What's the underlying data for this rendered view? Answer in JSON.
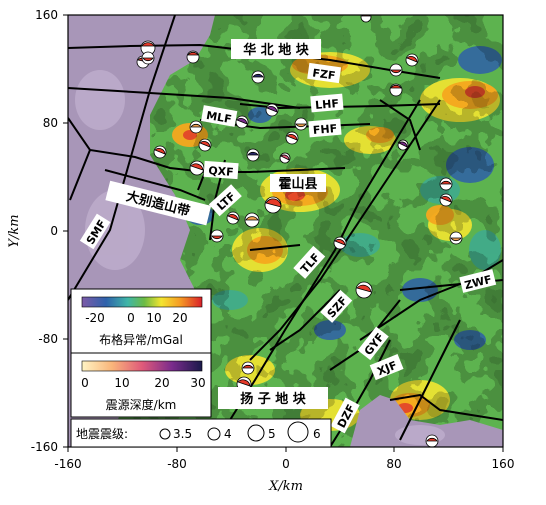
{
  "axes": {
    "x_title": "X/km",
    "y_title": "Y/km",
    "x_ticks": [
      "-160",
      "-80",
      "0",
      "80",
      "160"
    ],
    "y_ticks": [
      "160",
      "80",
      "0",
      "-80",
      "-160"
    ]
  },
  "regions": {
    "north_block": "华 北 地 块",
    "yangtze_block": "扬 子 地 块",
    "dabie_belt": "大别造山带",
    "huoshan": "霍山县"
  },
  "faults": {
    "fzf": "FZF",
    "lhf": "LHF",
    "fhf": "FHF",
    "mlf": "MLF",
    "qxf": "QXF",
    "ltf": "LTF",
    "smf": "SMF",
    "tlf": "TLF",
    "szf": "SZF",
    "gyf": "GYF",
    "xjf": "XJF",
    "dzf": "DZF",
    "zwf": "ZWF"
  },
  "legend_gravity": {
    "title": "布格异常/mGal",
    "ticks": [
      "-20",
      "0",
      "10",
      "20"
    ]
  },
  "legend_depth": {
    "title": "震源深度/km",
    "ticks": [
      "0",
      "10",
      "20",
      "30"
    ]
  },
  "legend_magnitude": {
    "title": "地震震级:",
    "labels": [
      "3.5",
      "4",
      "5",
      "6"
    ]
  },
  "colors": {
    "background_green": "#5db34f",
    "low_purple": "#a896b8",
    "high_orange": "#f5a81e",
    "deep_blue": "#2e5fa8"
  }
}
